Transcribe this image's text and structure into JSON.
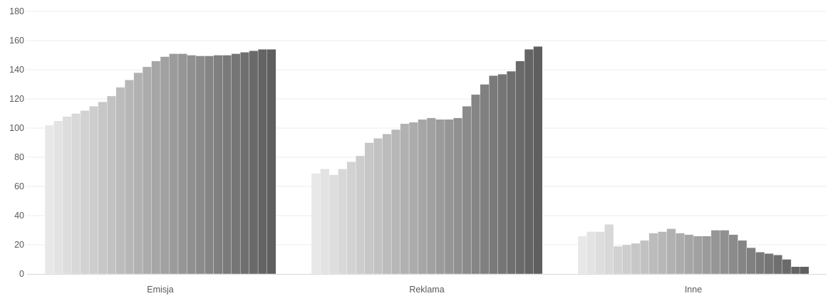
{
  "chart_data": {
    "type": "bar",
    "title": "",
    "xlabel": "",
    "ylabel": "",
    "ylim": [
      0,
      180
    ],
    "yticks": [
      0,
      20,
      40,
      60,
      80,
      100,
      120,
      140,
      160,
      180
    ],
    "grid": true,
    "legend": "none",
    "categories": [
      "Emisja",
      "Reklama",
      "Inne"
    ],
    "bars_per_category": 26,
    "color_ramp": [
      "#e8e8e8",
      "#5f5f5f"
    ],
    "values": {
      "Emisja": [
        102,
        105,
        108,
        110,
        112,
        115,
        118,
        122,
        128,
        133,
        138,
        142,
        146,
        149,
        151,
        151,
        150,
        149.5,
        149.5,
        150,
        150,
        151,
        152,
        153,
        154,
        154
      ],
      "Reklama": [
        69,
        72,
        68,
        72,
        77,
        81,
        90,
        93,
        96,
        99,
        103,
        104,
        106,
        107,
        106,
        106,
        107,
        115,
        123,
        130,
        136,
        137,
        139,
        146,
        154,
        156
      ],
      "Inne": [
        26,
        29,
        29,
        34,
        19,
        20,
        21,
        23,
        28,
        29,
        31,
        28,
        27,
        26,
        26,
        30,
        30,
        27,
        23,
        18,
        15,
        14,
        13,
        10,
        5,
        5
      ]
    }
  }
}
